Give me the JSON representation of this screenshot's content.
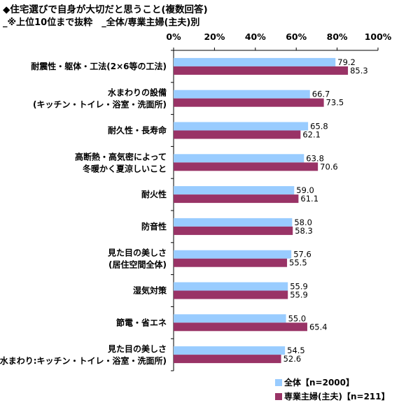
{
  "header": {
    "title": "◆住宅選びで自身が大切だと思うこと(複数回答)",
    "subtitle": "_※上位10位まで抜粋　_全体/専業主婦(主夫)別"
  },
  "chart_data": {
    "type": "bar",
    "orientation": "horizontal",
    "x_ticks": [
      "0%",
      "20%",
      "40%",
      "60%",
      "80%",
      "100%"
    ],
    "xlim": [
      0,
      100
    ],
    "categories": [
      [
        "耐震性・躯体・工法(2×6等の工法)"
      ],
      [
        "水まわりの設備",
        "(キッチン・トイレ・浴室・洗面所)"
      ],
      [
        "耐久性・長寿命"
      ],
      [
        "高断熱・高気密によって",
        "冬暖かく夏涼しいこと"
      ],
      [
        "耐火性"
      ],
      [
        "防音性"
      ],
      [
        "見た目の美しさ",
        "(居住空間全体)"
      ],
      [
        "湿気対策"
      ],
      [
        "節電・省エネ"
      ],
      [
        "見た目の美しさ",
        "(水まわり:キッチン・トイレ・浴室・洗面所)"
      ]
    ],
    "series": [
      {
        "name": "全体【n=2000】",
        "color": "#99ccff",
        "values": [
          79.2,
          66.7,
          65.8,
          63.8,
          59.0,
          58.0,
          57.6,
          55.9,
          55.0,
          54.5
        ],
        "labels": [
          "79.2",
          "66.7",
          "65.8",
          "63.8",
          "59.0",
          "58.0",
          "57.6",
          "55.9",
          "55.0",
          "54.5"
        ]
      },
      {
        "name": "専業主婦(主夫)【n=211】",
        "color": "#993366",
        "values": [
          85.3,
          73.5,
          62.1,
          70.6,
          61.1,
          58.3,
          55.5,
          55.9,
          65.4,
          52.6
        ],
        "labels": [
          "85.3",
          "73.5",
          "62.1",
          "70.6",
          "61.1",
          "58.3",
          "55.5",
          "55.9",
          "65.4",
          "52.6"
        ]
      }
    ],
    "grid": false,
    "legend_position": "bottom-right"
  }
}
